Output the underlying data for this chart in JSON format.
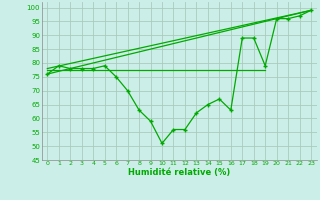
{
  "title": "",
  "xlabel": "Humidité relative (%)",
  "ylabel": "",
  "bg_color": "#cceee8",
  "grid_color": "#aaccbb",
  "line_color": "#00aa00",
  "xlim": [
    -0.5,
    23.5
  ],
  "ylim": [
    45,
    102
  ],
  "yticks": [
    45,
    50,
    55,
    60,
    65,
    70,
    75,
    80,
    85,
    90,
    95,
    100
  ],
  "xticks": [
    0,
    1,
    2,
    3,
    4,
    5,
    6,
    7,
    8,
    9,
    10,
    11,
    12,
    13,
    14,
    15,
    16,
    17,
    18,
    19,
    20,
    21,
    22,
    23
  ],
  "main_line_x": [
    0,
    1,
    2,
    3,
    4,
    5,
    6,
    7,
    8,
    9,
    10,
    11,
    12,
    13,
    14,
    15,
    16,
    17,
    18,
    19,
    20,
    21,
    22,
    23
  ],
  "main_line_y": [
    76,
    79,
    78,
    78,
    78,
    79,
    75,
    70,
    63,
    59,
    51,
    56,
    56,
    62,
    65,
    67,
    63,
    89,
    89,
    79,
    96,
    96,
    97,
    99
  ],
  "flat_line_x": [
    0,
    19
  ],
  "flat_line_y": [
    77.5,
    77.5
  ],
  "rise_line_x": [
    0,
    23
  ],
  "rise_line_y": [
    76,
    99
  ],
  "rise_line2_x": [
    0,
    23
  ],
  "rise_line2_y": [
    78,
    99
  ]
}
